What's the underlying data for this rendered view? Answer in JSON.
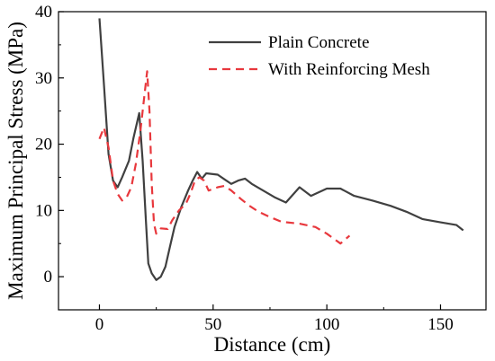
{
  "chart_data": {
    "type": "line",
    "title": "",
    "xlabel": "Distance (cm)",
    "ylabel": "Maximum Principal Stress (MPa)",
    "xlim": [
      -18,
      170
    ],
    "ylim": [
      -5,
      40
    ],
    "xticks": [
      0,
      50,
      100,
      150
    ],
    "yticks": [
      0,
      10,
      20,
      30,
      40
    ],
    "grid": false,
    "legend_position": "top-right",
    "series": [
      {
        "name": "Plain Concrete",
        "color": "#404040",
        "style": "solid",
        "points": [
          [
            0,
            39
          ],
          [
            2,
            29
          ],
          [
            4,
            18.5
          ],
          [
            6,
            14.5
          ],
          [
            8,
            13.5
          ],
          [
            10,
            15
          ],
          [
            13,
            17.5
          ],
          [
            15,
            21
          ],
          [
            17.5,
            24.7
          ],
          [
            19,
            17.5
          ],
          [
            20.5,
            8
          ],
          [
            21.5,
            2
          ],
          [
            23,
            0.5
          ],
          [
            25,
            -0.5
          ],
          [
            27,
            0
          ],
          [
            29,
            1.5
          ],
          [
            31,
            4.5
          ],
          [
            33,
            7.5
          ],
          [
            36,
            10.5
          ],
          [
            39,
            13
          ],
          [
            41,
            14.5
          ],
          [
            43,
            15.8
          ],
          [
            45,
            14.8
          ],
          [
            47,
            15.6
          ],
          [
            52,
            15.4
          ],
          [
            55,
            14.7
          ],
          [
            58,
            14
          ],
          [
            61,
            14.5
          ],
          [
            64,
            14.8
          ],
          [
            67,
            14
          ],
          [
            72,
            13
          ],
          [
            77,
            12
          ],
          [
            82,
            11.2
          ],
          [
            88,
            13.5
          ],
          [
            93,
            12.2
          ],
          [
            100,
            13.3
          ],
          [
            106,
            13.3
          ],
          [
            112,
            12.2
          ],
          [
            120,
            11.5
          ],
          [
            128,
            10.7
          ],
          [
            135,
            9.8
          ],
          [
            142,
            8.7
          ],
          [
            150,
            8.2
          ],
          [
            157,
            7.8
          ],
          [
            160,
            7
          ]
        ]
      },
      {
        "name": "With Reinforcing Mesh",
        "color": "#e8383d",
        "style": "dashed",
        "points": [
          [
            0,
            20.8
          ],
          [
            2,
            22.5
          ],
          [
            4,
            19.5
          ],
          [
            6,
            14.5
          ],
          [
            8,
            12.5
          ],
          [
            10,
            11.5
          ],
          [
            12,
            12
          ],
          [
            14,
            13.5
          ],
          [
            16,
            17
          ],
          [
            18,
            22
          ],
          [
            20,
            28
          ],
          [
            21,
            31
          ],
          [
            22,
            25
          ],
          [
            23,
            14
          ],
          [
            24,
            8
          ],
          [
            25,
            6.5
          ],
          [
            27,
            7.3
          ],
          [
            30,
            7.2
          ],
          [
            32,
            8.5
          ],
          [
            35,
            10
          ],
          [
            38,
            11
          ],
          [
            40,
            12.5
          ],
          [
            42,
            14.5
          ],
          [
            44,
            15
          ],
          [
            46,
            14.5
          ],
          [
            48,
            13
          ],
          [
            52,
            13.5
          ],
          [
            55,
            13.7
          ],
          [
            58,
            13
          ],
          [
            62,
            11.8
          ],
          [
            66,
            10.7
          ],
          [
            70,
            9.8
          ],
          [
            75,
            9
          ],
          [
            80,
            8.3
          ],
          [
            88,
            8
          ],
          [
            95,
            7.5
          ],
          [
            100,
            6.5
          ],
          [
            106,
            5
          ],
          [
            110,
            6.2
          ]
        ]
      }
    ]
  }
}
